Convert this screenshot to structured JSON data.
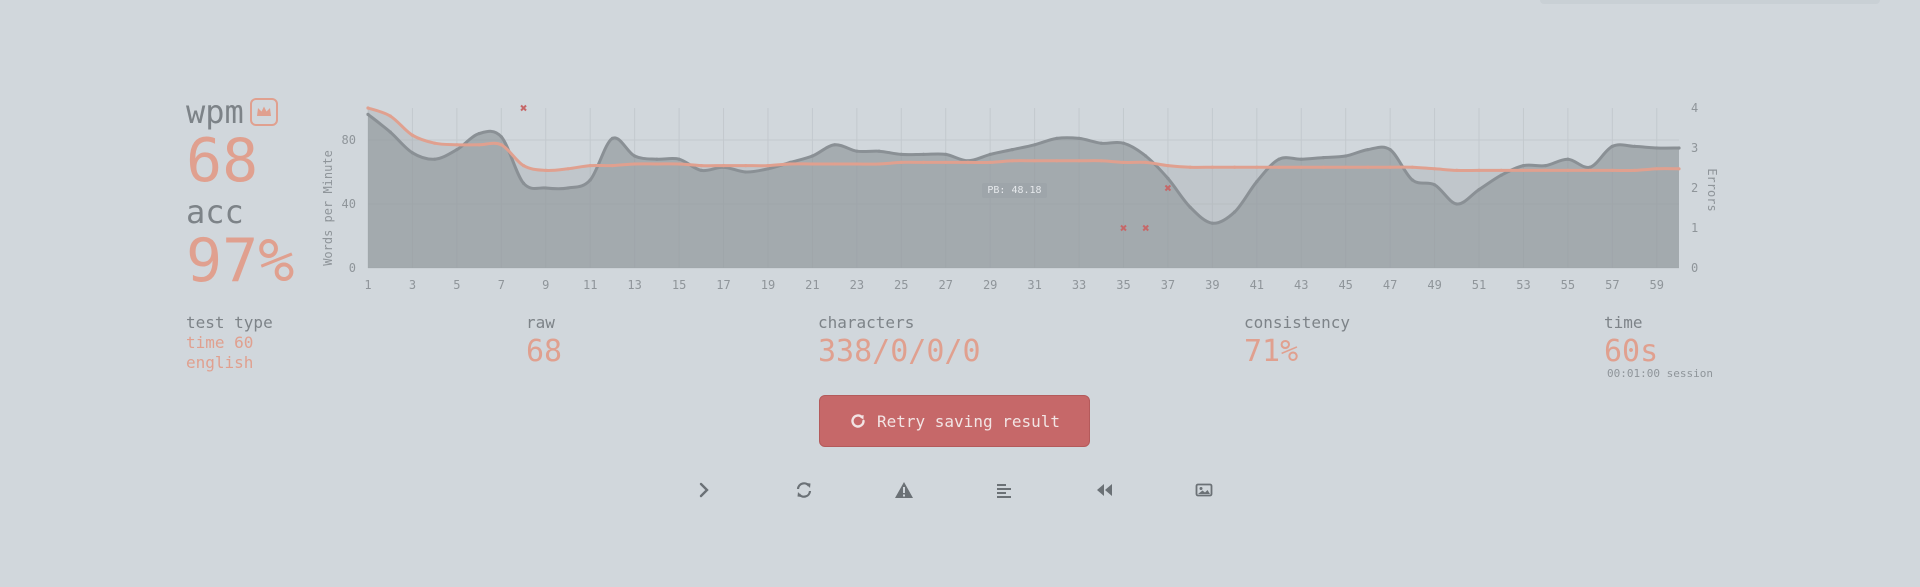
{
  "result": {
    "wpm_label": "wpm",
    "wpm_value": "68",
    "acc_label": "acc",
    "acc_value": "97%"
  },
  "chart_data": {
    "type": "line",
    "ylabel": "Words per Minute",
    "y2label": "Errors",
    "pb_label": "PB: 48.18",
    "ylim": [
      0,
      100
    ],
    "y_ticks": [
      "0",
      "40",
      "80"
    ],
    "y2lim": [
      0,
      4
    ],
    "y2_ticks": [
      "0",
      "1",
      "2",
      "3",
      "4"
    ],
    "x_ticks": [
      "1",
      "3",
      "5",
      "7",
      "9",
      "11",
      "13",
      "15",
      "17",
      "19",
      "21",
      "23",
      "25",
      "27",
      "29",
      "31",
      "33",
      "35",
      "37",
      "39",
      "41",
      "43",
      "45",
      "47",
      "49",
      "51",
      "53",
      "55",
      "57",
      "59"
    ],
    "x": [
      1,
      2,
      3,
      4,
      5,
      6,
      7,
      8,
      9,
      10,
      11,
      12,
      13,
      14,
      15,
      16,
      17,
      18,
      19,
      20,
      21,
      22,
      23,
      24,
      25,
      26,
      27,
      28,
      29,
      30,
      31,
      32,
      33,
      34,
      35,
      36,
      37,
      38,
      39,
      40,
      41,
      42,
      43,
      44,
      45,
      46,
      47,
      48,
      49,
      50,
      51,
      52,
      53,
      54,
      55,
      56,
      57,
      58,
      59,
      60
    ],
    "series": [
      {
        "name": "",
        "color": "#8a9095",
        "values": [
          96,
          85,
          72,
          68,
          74,
          84,
          82,
          53,
          50,
          50,
          55,
          81,
          70,
          68,
          68,
          61,
          63,
          60,
          62,
          66,
          70,
          77,
          73,
          73,
          71,
          71,
          71,
          67,
          71,
          74,
          77,
          81,
          81,
          78,
          78,
          70,
          56,
          38,
          28,
          35,
          54,
          68,
          68,
          69,
          70,
          74,
          74,
          55,
          52,
          40,
          49,
          58,
          64,
          64,
          68,
          63,
          76,
          76,
          75,
          75
        ]
      },
      {
        "name": "",
        "color": "#e0a08f",
        "values": [
          100,
          95,
          83,
          78,
          77,
          77,
          77,
          64,
          61,
          62,
          64,
          64,
          65,
          65,
          65,
          64,
          64,
          64,
          64,
          65,
          65,
          65,
          65,
          65,
          66,
          66,
          66,
          66,
          66,
          67,
          67,
          67,
          67,
          67,
          66,
          66,
          64,
          63,
          63,
          63,
          63,
          63,
          63,
          63,
          63,
          63,
          63,
          63,
          62,
          61,
          61,
          61,
          61,
          61,
          61,
          61,
          61,
          61,
          62,
          62
        ]
      }
    ],
    "errors": [
      {
        "x": 8,
        "y": 4
      },
      {
        "x": 35,
        "y": 1
      },
      {
        "x": 36,
        "y": 1
      },
      {
        "x": 37,
        "y": 2
      }
    ]
  },
  "stats": {
    "test_type_label": "test type",
    "test_type_line1": "time 60",
    "test_type_line2": "english",
    "raw_label": "raw",
    "raw_value": "68",
    "characters_label": "characters",
    "characters_value": "338/0/0/0",
    "consistency_label": "consistency",
    "consistency_value": "71%",
    "time_label": "time",
    "time_value": "60s",
    "session_note": "00:01:00 session"
  },
  "retry": {
    "label": "Retry saving result",
    "icon": "retry-icon"
  },
  "actions": [
    {
      "name": "next-test-button",
      "icon": "chevron-right-icon"
    },
    {
      "name": "restart-test-button",
      "icon": "refresh-icon"
    },
    {
      "name": "practice-words-button",
      "icon": "warning-icon"
    },
    {
      "name": "word-history-button",
      "icon": "align-left-icon"
    },
    {
      "name": "replay-button",
      "icon": "backward-icon"
    },
    {
      "name": "screenshot-button",
      "icon": "image-icon"
    }
  ],
  "colors": {
    "background": "#d1d7dc",
    "main": "#e0a08f",
    "sub": "#7d8388",
    "error": "#c66869"
  }
}
